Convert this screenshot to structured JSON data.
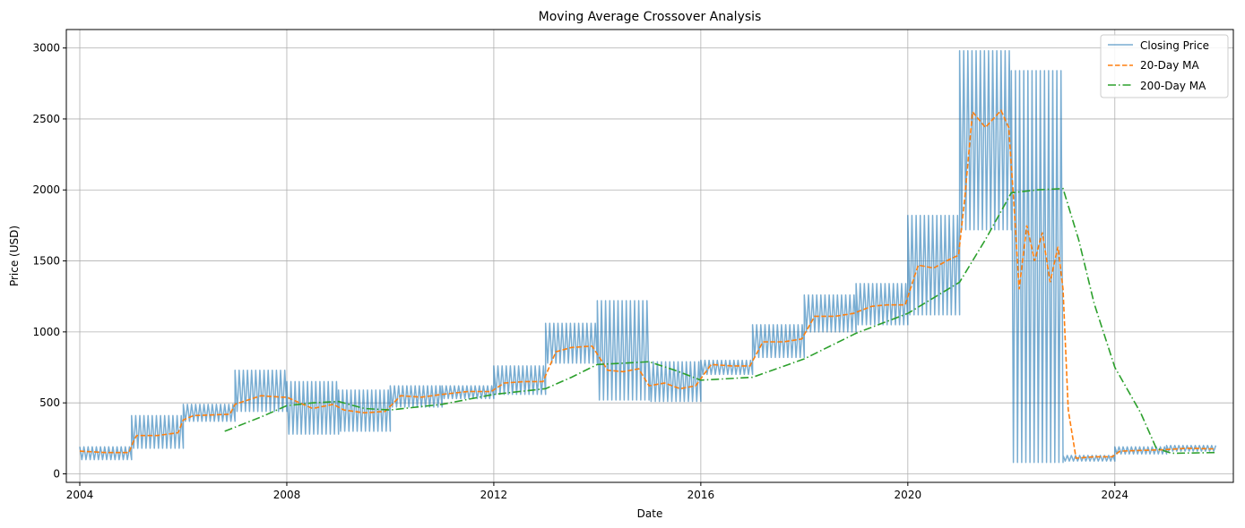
{
  "chart_data": {
    "type": "line",
    "title": "Moving Average Crossover Analysis",
    "xlabel": "Date",
    "ylabel": "Price (USD)",
    "xlim": [
      2003.74,
      2026.29
    ],
    "ylim": [
      -60,
      3130
    ],
    "xticks": [
      2004,
      2008,
      2012,
      2016,
      2020,
      2024
    ],
    "yticks": [
      0,
      500,
      1000,
      1500,
      2000,
      2500,
      3000
    ],
    "grid": true,
    "legend_position": "upper right",
    "series": [
      {
        "name": "Closing Price",
        "color": "#1f77b4",
        "style": "solid",
        "alpha": 0.6,
        "segments": [
          {
            "start": 2004.0,
            "end": 2005.0,
            "low": 100,
            "high": 190
          },
          {
            "start": 2005.0,
            "end": 2006.0,
            "low": 180,
            "high": 410
          },
          {
            "start": 2006.0,
            "end": 2007.0,
            "low": 370,
            "high": 490
          },
          {
            "start": 2007.0,
            "end": 2008.0,
            "low": 440,
            "high": 730
          },
          {
            "start": 2008.0,
            "end": 2009.0,
            "low": 280,
            "high": 650
          },
          {
            "start": 2009.0,
            "end": 2010.0,
            "low": 300,
            "high": 590
          },
          {
            "start": 2010.0,
            "end": 2011.0,
            "low": 470,
            "high": 620
          },
          {
            "start": 2011.0,
            "end": 2012.0,
            "low": 530,
            "high": 620
          },
          {
            "start": 2012.0,
            "end": 2013.0,
            "low": 560,
            "high": 760
          },
          {
            "start": 2013.0,
            "end": 2014.0,
            "low": 780,
            "high": 1060
          },
          {
            "start": 2014.0,
            "end": 2015.0,
            "low": 520,
            "high": 1220
          },
          {
            "start": 2015.0,
            "end": 2016.0,
            "low": 510,
            "high": 790
          },
          {
            "start": 2016.0,
            "end": 2017.0,
            "low": 700,
            "high": 800
          },
          {
            "start": 2017.0,
            "end": 2018.0,
            "low": 820,
            "high": 1050
          },
          {
            "start": 2018.0,
            "end": 2019.0,
            "low": 1000,
            "high": 1260
          },
          {
            "start": 2019.0,
            "end": 2020.0,
            "low": 1050,
            "high": 1340
          },
          {
            "start": 2020.0,
            "end": 2021.0,
            "low": 1120,
            "high": 1820
          },
          {
            "start": 2021.0,
            "end": 2022.0,
            "low": 1720,
            "high": 2980
          },
          {
            "start": 2022.0,
            "end": 2023.0,
            "low": 80,
            "high": 2840
          },
          {
            "start": 2023.0,
            "end": 2024.0,
            "low": 90,
            "high": 130
          },
          {
            "start": 2024.0,
            "end": 2025.0,
            "low": 140,
            "high": 190
          },
          {
            "start": 2025.0,
            "end": 2025.95,
            "low": 160,
            "high": 200
          }
        ]
      },
      {
        "name": "20-Day MA",
        "color": "#ff7f0e",
        "style": "dashed",
        "points": [
          [
            2004.0,
            160
          ],
          [
            2004.5,
            150
          ],
          [
            2004.95,
            150
          ],
          [
            2005.05,
            240
          ],
          [
            2005.1,
            270
          ],
          [
            2005.5,
            270
          ],
          [
            2005.9,
            290
          ],
          [
            2006.0,
            380
          ],
          [
            2006.2,
            410
          ],
          [
            2006.9,
            420
          ],
          [
            2007.0,
            490
          ],
          [
            2007.5,
            550
          ],
          [
            2007.9,
            540
          ],
          [
            2008.0,
            540
          ],
          [
            2008.5,
            460
          ],
          [
            2008.9,
            490
          ],
          [
            2009.1,
            450
          ],
          [
            2009.5,
            430
          ],
          [
            2009.9,
            440
          ],
          [
            2010.2,
            550
          ],
          [
            2010.6,
            540
          ],
          [
            2011.0,
            560
          ],
          [
            2011.5,
            580
          ],
          [
            2011.95,
            580
          ],
          [
            2012.2,
            640
          ],
          [
            2012.6,
            650
          ],
          [
            2012.95,
            650
          ],
          [
            2013.2,
            860
          ],
          [
            2013.5,
            890
          ],
          [
            2013.9,
            900
          ],
          [
            2014.2,
            730
          ],
          [
            2014.5,
            720
          ],
          [
            2014.8,
            740
          ],
          [
            2015.0,
            620
          ],
          [
            2015.3,
            640
          ],
          [
            2015.6,
            600
          ],
          [
            2015.9,
            620
          ],
          [
            2016.2,
            770
          ],
          [
            2016.6,
            760
          ],
          [
            2016.95,
            760
          ],
          [
            2017.2,
            930
          ],
          [
            2017.6,
            930
          ],
          [
            2017.95,
            950
          ],
          [
            2018.2,
            1110
          ],
          [
            2018.6,
            1110
          ],
          [
            2018.95,
            1130
          ],
          [
            2019.3,
            1180
          ],
          [
            2019.6,
            1190
          ],
          [
            2019.95,
            1190
          ],
          [
            2020.2,
            1470
          ],
          [
            2020.5,
            1450
          ],
          [
            2020.8,
            1510
          ],
          [
            2020.98,
            1540
          ],
          [
            2021.1,
            1940
          ],
          [
            2021.25,
            2550
          ],
          [
            2021.5,
            2440
          ],
          [
            2021.8,
            2560
          ],
          [
            2021.95,
            2440
          ],
          [
            2022.05,
            1900
          ],
          [
            2022.15,
            1300
          ],
          [
            2022.3,
            1750
          ],
          [
            2022.45,
            1500
          ],
          [
            2022.6,
            1700
          ],
          [
            2022.75,
            1350
          ],
          [
            2022.9,
            1600
          ],
          [
            2023.0,
            1300
          ],
          [
            2023.1,
            450
          ],
          [
            2023.25,
            110
          ],
          [
            2023.6,
            120
          ],
          [
            2023.95,
            120
          ],
          [
            2024.1,
            160
          ],
          [
            2024.5,
            165
          ],
          [
            2024.95,
            170
          ],
          [
            2025.4,
            180
          ],
          [
            2025.95,
            175
          ]
        ]
      },
      {
        "name": "200-Day MA",
        "color": "#2ca02c",
        "style": "dashdot",
        "points": [
          [
            2006.8,
            300
          ],
          [
            2007.5,
            400
          ],
          [
            2008.0,
            480
          ],
          [
            2008.5,
            500
          ],
          [
            2009.0,
            510
          ],
          [
            2009.5,
            460
          ],
          [
            2010.0,
            450
          ],
          [
            2011.0,
            490
          ],
          [
            2012.0,
            560
          ],
          [
            2013.0,
            600
          ],
          [
            2013.5,
            680
          ],
          [
            2014.0,
            770
          ],
          [
            2014.5,
            780
          ],
          [
            2015.0,
            790
          ],
          [
            2015.5,
            730
          ],
          [
            2016.0,
            660
          ],
          [
            2017.0,
            680
          ],
          [
            2018.0,
            810
          ],
          [
            2019.0,
            990
          ],
          [
            2020.0,
            1130
          ],
          [
            2021.0,
            1350
          ],
          [
            2021.5,
            1650
          ],
          [
            2022.0,
            1980
          ],
          [
            2022.5,
            2000
          ],
          [
            2023.0,
            2010
          ],
          [
            2023.3,
            1650
          ],
          [
            2023.6,
            1200
          ],
          [
            2024.0,
            750
          ],
          [
            2024.5,
            430
          ],
          [
            2024.8,
            180
          ],
          [
            2025.1,
            145
          ],
          [
            2025.95,
            150
          ]
        ]
      }
    ]
  }
}
